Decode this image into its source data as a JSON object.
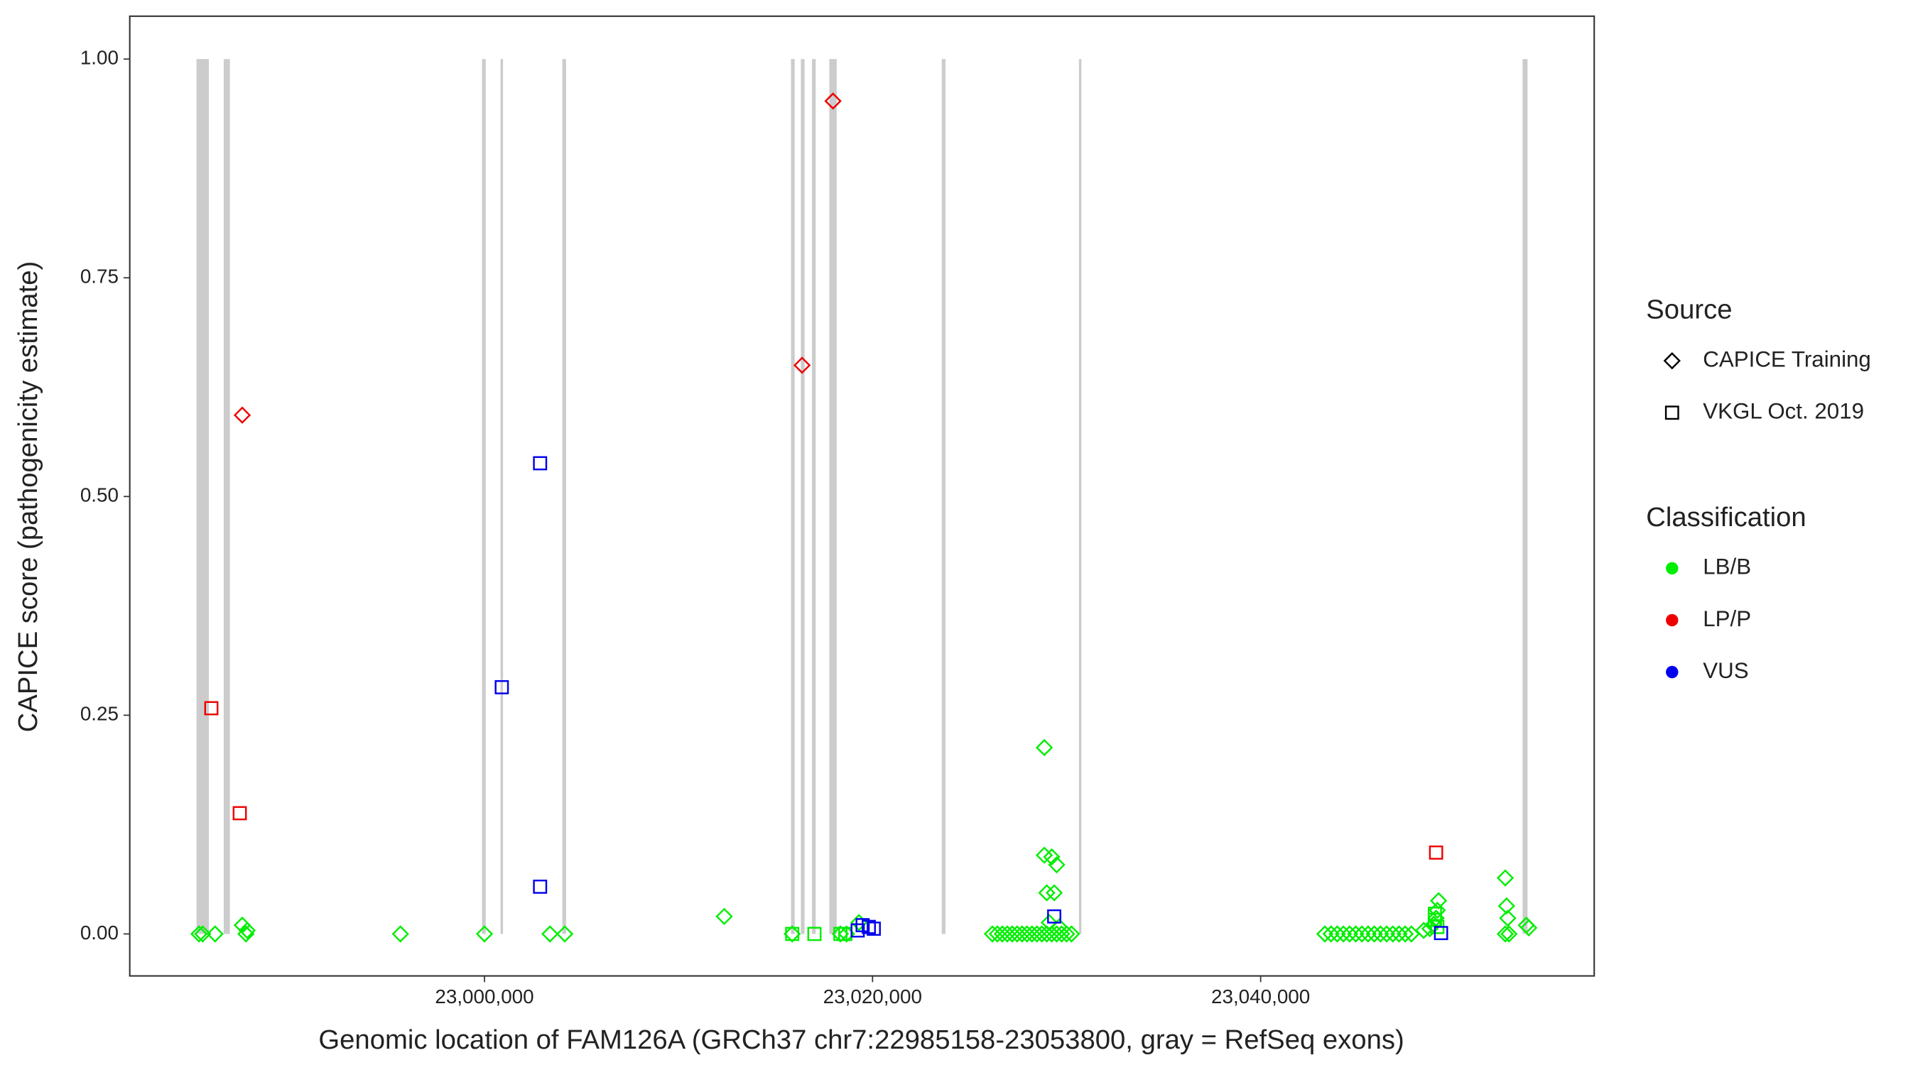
{
  "chart_data": {
    "type": "scatter",
    "xlabel": "Genomic location of FAM126A (GRCh37 chr7:22985158-23053800, gray = RefSeq exons)",
    "ylabel": "CAPICE score (pathogenicity estimate)",
    "xlim": [
      22981720,
      23057190
    ],
    "ylim": [
      -0.048,
      1.049
    ],
    "xticks": [
      {
        "value": 23000000,
        "label": "23,000,000"
      },
      {
        "value": 23020000,
        "label": "23,020,000"
      },
      {
        "value": 23040000,
        "label": "23,040,000"
      }
    ],
    "yticks": [
      {
        "value": 0,
        "label": "0.00"
      },
      {
        "value": 0.25,
        "label": "0.25"
      },
      {
        "value": 0.5,
        "label": "0.50"
      },
      {
        "value": 0.75,
        "label": "0.75"
      },
      {
        "value": 1,
        "label": "1.00"
      }
    ],
    "exon_color": "#cccccc",
    "exons": [
      [
        22985160,
        22985797
      ],
      [
        22986561,
        22986880
      ],
      [
        22999873,
        23000064
      ],
      [
        23000828,
        23000955
      ],
      [
        23004012,
        23004204
      ],
      [
        23015795,
        23015986
      ],
      [
        23016305,
        23016496
      ],
      [
        23016878,
        23017069
      ],
      [
        23017770,
        23018152
      ],
      [
        23023565,
        23023756
      ],
      [
        23030635,
        23030763
      ],
      [
        23053500,
        23053754
      ]
    ],
    "legend_source": {
      "title": "Source",
      "entries": [
        {
          "label": "CAPICE Training",
          "shape": "diamond"
        },
        {
          "label": "VKGL Oct. 2019",
          "shape": "square"
        }
      ]
    },
    "legend_class": {
      "title": "Classification",
      "entries": [
        {
          "label": "LB/B",
          "color": "#00ee00"
        },
        {
          "label": "LP/P",
          "color": "#ee0000"
        },
        {
          "label": "VUS",
          "color": "#0000ee"
        }
      ]
    },
    "series": [
      {
        "source": "CAPICE Training",
        "classification": "LB/B",
        "x": [
          22985288,
          22985479,
          22986116,
          22987517,
          22987708,
          22987772,
          22995669,
          23000000,
          23003376,
          23004140,
          23012356,
          23015859,
          23019298,
          23018343,
          23018661,
          23026177,
          23026431,
          23026686,
          23026941,
          23027195,
          23027450,
          23027705,
          23027960,
          23028215,
          23028469,
          23028724,
          23028979,
          23029234,
          23029488,
          23029743,
          23029998,
          23030253,
          23028852,
          23028852,
          23029234,
          23029488,
          23028979,
          23029361,
          23029106,
          23029616,
          23043309,
          23043628,
          23043946,
          23044265,
          23044583,
          23044901,
          23045220,
          23045538,
          23045857,
          23046175,
          23046494,
          23046812,
          23047131,
          23047449,
          23047768,
          23049169,
          23049105,
          23049041,
          23048914,
          23048723,
          23048404,
          23052608,
          23052672,
          23052735,
          23052608,
          23052799,
          23053691,
          23053818
        ],
        "y": [
          0,
          0,
          0,
          0.01,
          0,
          0.004,
          0,
          0,
          0,
          0,
          0.02,
          0,
          0.013,
          0,
          0,
          0,
          0,
          0,
          0,
          0,
          0,
          0,
          0,
          0,
          0,
          0,
          0,
          0,
          0,
          0,
          0,
          0,
          0.213,
          0.09,
          0.088,
          0.079,
          0.047,
          0.047,
          0.013,
          0.008,
          0,
          0,
          0,
          0,
          0,
          0,
          0,
          0,
          0,
          0,
          0,
          0,
          0,
          0,
          0,
          0.038,
          0.027,
          0.018,
          0.011,
          0.006,
          0.004,
          0.064,
          0.032,
          0.018,
          0,
          0,
          0.01,
          0.007
        ]
      },
      {
        "source": "CAPICE Training",
        "classification": "LP/P",
        "x": [
          22987517,
          23016368,
          23017961
        ],
        "y": [
          0.593,
          0.65,
          0.952
        ]
      },
      {
        "source": "VKGL Oct. 2019",
        "classification": "LB/B",
        "x": [
          23015859,
          23017005,
          23018343,
          23018597,
          23048977,
          23048977,
          23049105
        ],
        "y": [
          0,
          0,
          0,
          0,
          0.023,
          0.016,
          0.008
        ]
      },
      {
        "source": "VKGL Oct. 2019",
        "classification": "LP/P",
        "x": [
          22985924,
          22987389,
          23049041
        ],
        "y": [
          0.258,
          0.138,
          0.093
        ]
      },
      {
        "source": "VKGL Oct. 2019",
        "classification": "VUS",
        "x": [
          23002866,
          23000892,
          23002866,
          23019234,
          23019489,
          23019807,
          23020062,
          23029361,
          23049297
        ],
        "y": [
          0.538,
          0.282,
          0.054,
          0.004,
          0.01,
          0.008,
          0.006,
          0.02,
          0.001
        ]
      }
    ]
  }
}
